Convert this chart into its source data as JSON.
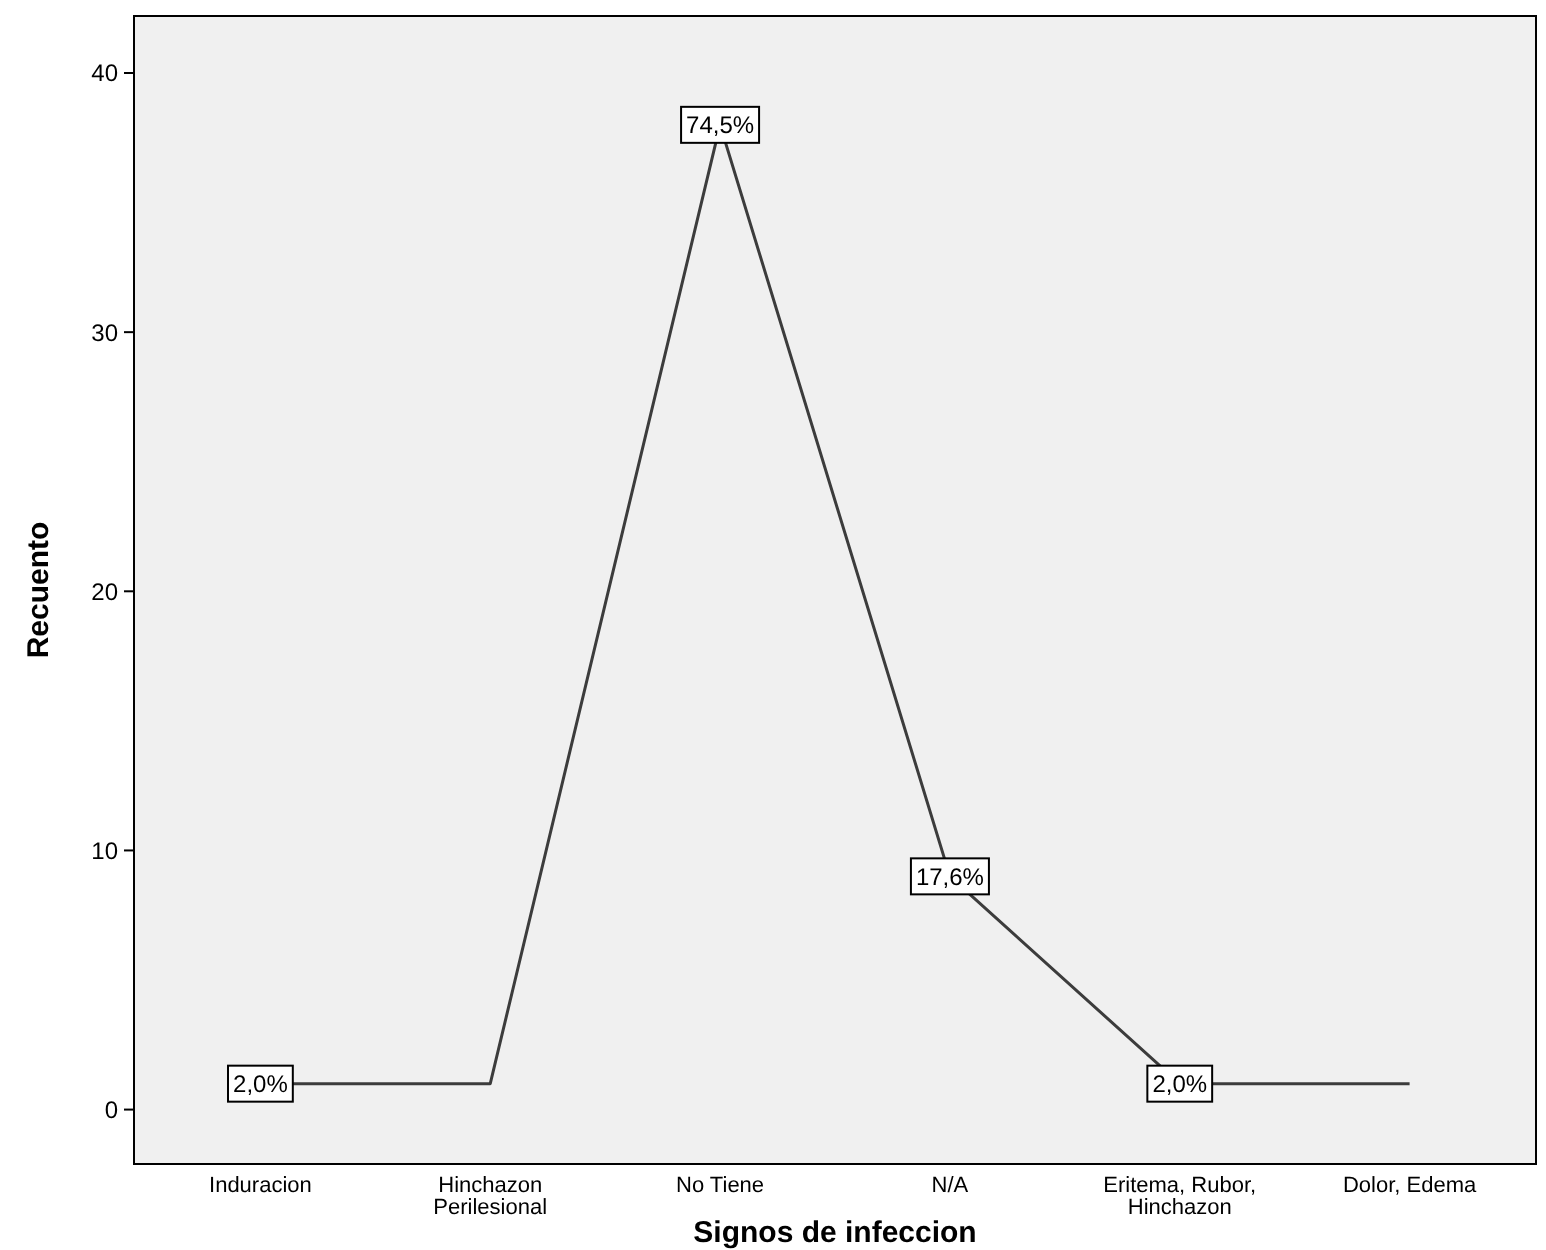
{
  "chart_data": {
    "type": "line",
    "xlabel": "Signos de infeccion",
    "ylabel": "Recuento",
    "categories": [
      "Induracion",
      "Hinchazon Perilesional",
      "No Tiene",
      "N/A",
      "Eritema, Rubor, Hinchazon",
      "Dolor, Edema"
    ],
    "series": [
      {
        "color": "#3c3c3c",
        "values": [
          1,
          1,
          38,
          9,
          1,
          1
        ]
      }
    ],
    "annotations": [
      {
        "text": "2,0%",
        "x": "Induracion",
        "y": 1
      },
      {
        "text": "74,5%",
        "x": "No Tiene",
        "y": 38
      },
      {
        "text": "17,6%",
        "x": "N/A",
        "y": 9
      },
      {
        "text": "2,0%",
        "x": "Eritema, Rubor, Hinchazon",
        "y": 1
      }
    ],
    "ylim": [
      -2.1,
      42.2
    ],
    "yticks": [
      0,
      10,
      20,
      30,
      40
    ],
    "grid": false,
    "line_style": "solid"
  }
}
